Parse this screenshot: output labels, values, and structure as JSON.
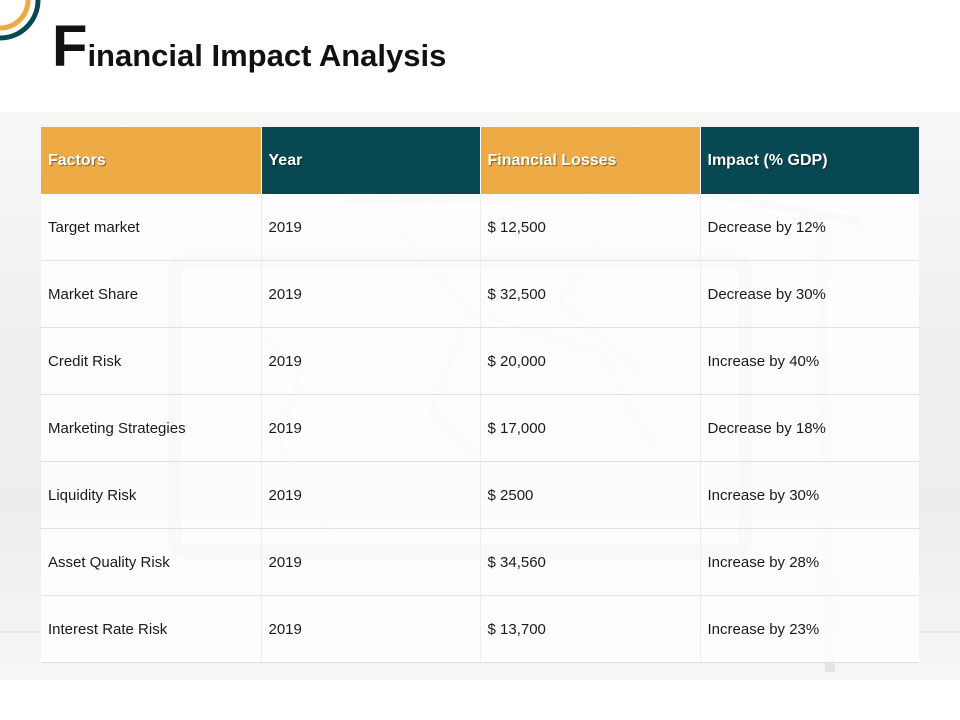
{
  "title": {
    "initial": "F",
    "rest": "inancial Impact Analysis"
  },
  "colors": {
    "accent_orange": "#eeaa44",
    "accent_teal": "#084853"
  },
  "table": {
    "headers": [
      "Factors",
      "Year",
      "Financial Losses",
      "Impact  (% GDP)"
    ],
    "rows": [
      [
        "Target market",
        "2019",
        "$ 12,500",
        "Decrease by 12%"
      ],
      [
        "Market Share",
        "2019",
        "$ 32,500",
        "Decrease by 30%"
      ],
      [
        "Credit Risk",
        "2019",
        "$ 20,000",
        "Increase  by 40%"
      ],
      [
        "Marketing Strategies",
        "2019",
        "$ 17,000",
        "Decrease by  18%"
      ],
      [
        "Liquidity Risk",
        "2019",
        "$ 2500",
        "Increase  by  30%"
      ],
      [
        "Asset Quality  Risk",
        "2019",
        "$ 34,560",
        "Increase  by 28%"
      ],
      [
        "Interest  Rate Risk",
        "2019",
        "$ 13,700",
        "Increase  by 23%"
      ]
    ]
  }
}
